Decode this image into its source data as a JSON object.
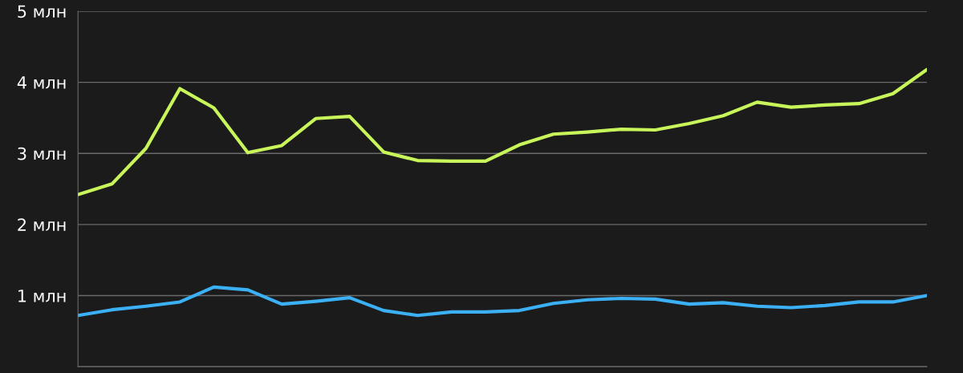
{
  "chart_data": {
    "type": "line",
    "categories": [
      null,
      null,
      null,
      null,
      null,
      null,
      null,
      null,
      null,
      null,
      null,
      null,
      null,
      null,
      null,
      null,
      null,
      null,
      null,
      null,
      null,
      null,
      null,
      null,
      null,
      null
    ],
    "series": [
      {
        "color": "#c8f55a",
        "values": [
          2.42,
          2.57,
          3.07,
          3.91,
          3.64,
          3.01,
          3.11,
          3.49,
          3.52,
          3.02,
          2.9,
          2.89,
          2.89,
          3.12,
          3.27,
          3.3,
          3.34,
          3.33,
          3.42,
          3.53,
          3.72,
          3.65,
          3.68,
          3.7,
          3.84,
          4.18
        ]
      },
      {
        "color": "#3bb0f5",
        "values": [
          0.72,
          0.8,
          0.85,
          0.91,
          1.12,
          1.08,
          0.88,
          0.92,
          0.97,
          0.79,
          0.72,
          0.77,
          0.77,
          0.79,
          0.89,
          0.94,
          0.96,
          0.95,
          0.88,
          0.9,
          0.85,
          0.83,
          0.86,
          0.91,
          0.91,
          1.0
        ]
      }
    ],
    "ylim": [
      0,
      5
    ],
    "yticks": [
      {
        "value": 0,
        "label": null
      },
      {
        "value": 1,
        "label": "1 млн"
      },
      {
        "value": 2,
        "label": "2 млн"
      },
      {
        "value": 3,
        "label": "3 млн"
      },
      {
        "value": 4,
        "label": "4 млн"
      },
      {
        "value": 5,
        "label": "5 млн"
      }
    ],
    "tick_labels": "y",
    "grid": "y",
    "marker": "none",
    "line_style": "solid"
  }
}
